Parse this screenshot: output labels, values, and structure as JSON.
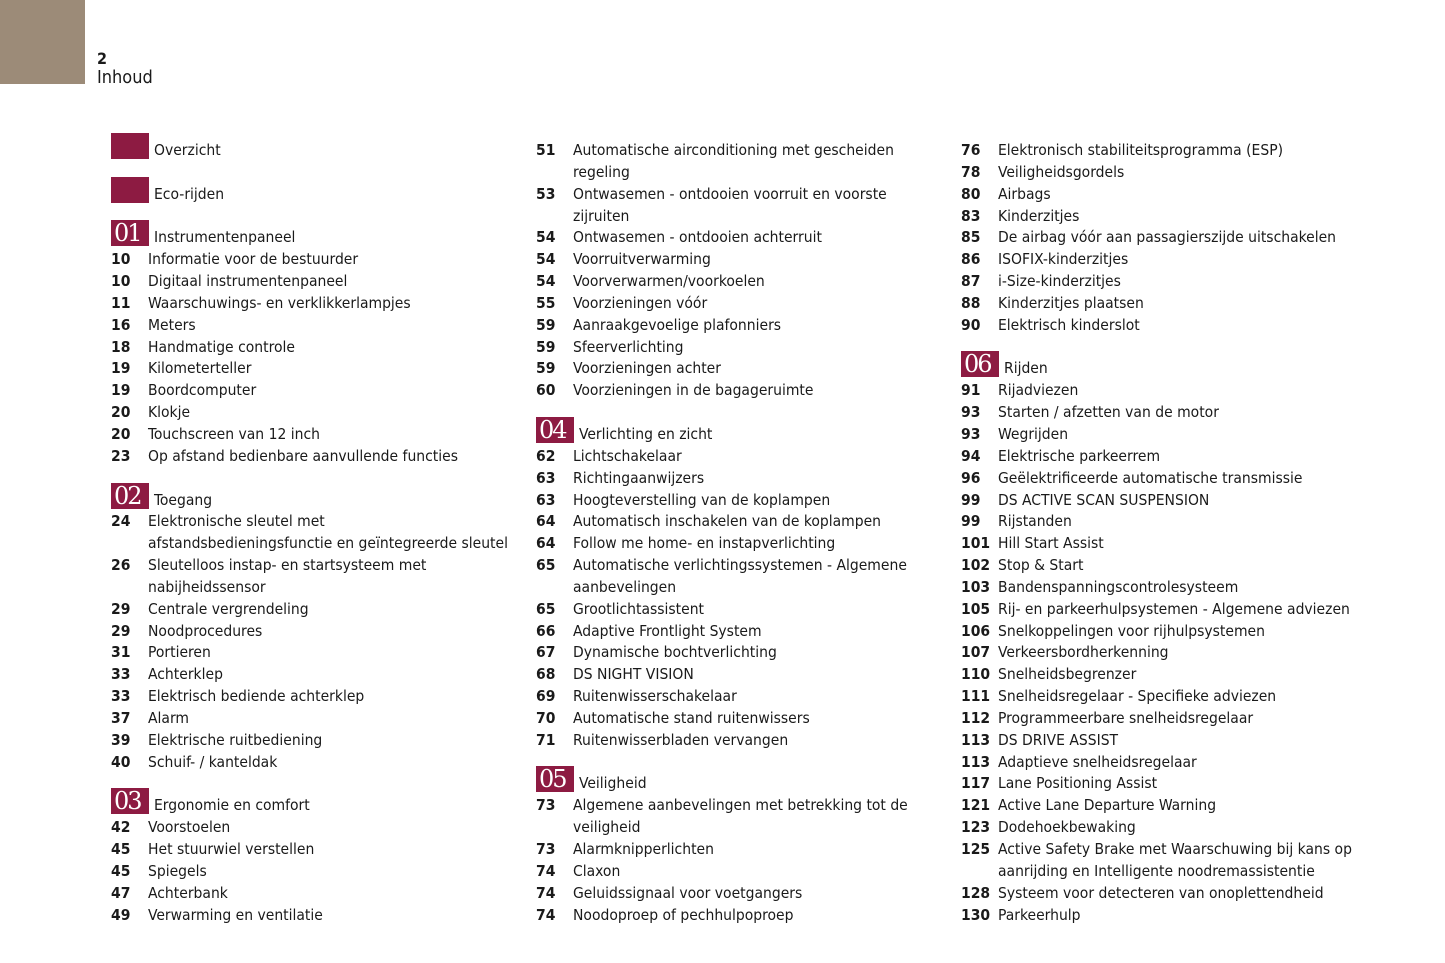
{
  "page": {
    "number": "2",
    "title": "Inhoud",
    "colors": {
      "accent": "#8d1b42",
      "tab": "#9c8b78"
    }
  },
  "columns": [
    [
      {
        "type": "header",
        "badge": "",
        "title": "Overzicht"
      },
      {
        "type": "blank"
      },
      {
        "type": "header",
        "badge": "",
        "title": "Eco-rijden"
      },
      {
        "type": "blank"
      },
      {
        "type": "header",
        "badge": "01",
        "title": "Instrumentenpaneel"
      },
      {
        "page": "10",
        "lines": [
          "Informatie voor de bestuurder"
        ]
      },
      {
        "page": "10",
        "lines": [
          "Digitaal instrumentenpaneel"
        ]
      },
      {
        "page": "11",
        "lines": [
          "Waarschuwings- en verklikkerlampjes"
        ]
      },
      {
        "page": "16",
        "lines": [
          "Meters"
        ]
      },
      {
        "page": "18",
        "lines": [
          "Handmatige controle"
        ]
      },
      {
        "page": "19",
        "lines": [
          "Kilometerteller"
        ]
      },
      {
        "page": "19",
        "lines": [
          "Boordcomputer"
        ]
      },
      {
        "page": "20",
        "lines": [
          "Klokje"
        ]
      },
      {
        "page": "20",
        "lines": [
          "Touchscreen van 12 inch"
        ]
      },
      {
        "page": "23",
        "lines": [
          "Op afstand bedienbare aanvullende functies"
        ]
      },
      {
        "type": "blank"
      },
      {
        "type": "header",
        "badge": "02",
        "title": "Toegang"
      },
      {
        "page": "24",
        "lines": [
          "Elektronische sleutel met",
          "afstandsbedieningsfunctie en geïntegreerde sleutel"
        ]
      },
      {
        "page": "26",
        "lines": [
          "Sleutelloos instap- en startsysteem met",
          "nabijheidssensor"
        ]
      },
      {
        "page": "29",
        "lines": [
          "Centrale vergrendeling"
        ]
      },
      {
        "page": "29",
        "lines": [
          "Noodprocedures"
        ]
      },
      {
        "page": "31",
        "lines": [
          "Portieren"
        ]
      },
      {
        "page": "33",
        "lines": [
          "Achterklep"
        ]
      },
      {
        "page": "33",
        "lines": [
          "Elektrisch bediende achterklep"
        ]
      },
      {
        "page": "37",
        "lines": [
          "Alarm"
        ]
      },
      {
        "page": "39",
        "lines": [
          "Elektrische ruitbediening"
        ]
      },
      {
        "page": "40",
        "lines": [
          "Schuif- / kanteldak"
        ]
      },
      {
        "type": "blank"
      },
      {
        "type": "header",
        "badge": "03",
        "title": "Ergonomie en comfort"
      },
      {
        "page": "42",
        "lines": [
          "Voorstoelen"
        ]
      },
      {
        "page": "45",
        "lines": [
          "Het stuurwiel verstellen"
        ]
      },
      {
        "page": "45",
        "lines": [
          "Spiegels"
        ]
      },
      {
        "page": "47",
        "lines": [
          "Achterbank"
        ]
      },
      {
        "page": "49",
        "lines": [
          "Verwarming en ventilatie"
        ]
      }
    ],
    [
      {
        "page": "51",
        "lines": [
          "Automatische airconditioning met gescheiden",
          "regeling"
        ]
      },
      {
        "page": "53",
        "lines": [
          "Ontwasemen - ontdooien voorruit en voorste",
          "zijruiten"
        ]
      },
      {
        "page": "54",
        "lines": [
          "Ontwasemen - ontdooien achterruit"
        ]
      },
      {
        "page": "54",
        "lines": [
          "Voorruitverwarming"
        ]
      },
      {
        "page": "54",
        "lines": [
          "Voorverwarmen/voorkoelen"
        ]
      },
      {
        "page": "55",
        "lines": [
          "Voorzieningen vóór"
        ]
      },
      {
        "page": "59",
        "lines": [
          "Aanraakgevoelige plafonniers"
        ]
      },
      {
        "page": "59",
        "lines": [
          "Sfeerverlichting"
        ]
      },
      {
        "page": "59",
        "lines": [
          "Voorzieningen achter"
        ]
      },
      {
        "page": "60",
        "lines": [
          "Voorzieningen in de bagageruimte"
        ]
      },
      {
        "type": "blank"
      },
      {
        "type": "header",
        "badge": "04",
        "title": "Verlichting en zicht"
      },
      {
        "page": "62",
        "lines": [
          "Lichtschakelaar"
        ]
      },
      {
        "page": "63",
        "lines": [
          "Richtingaanwijzers"
        ]
      },
      {
        "page": "63",
        "lines": [
          "Hoogteverstelling van de koplampen"
        ]
      },
      {
        "page": "64",
        "lines": [
          "Automatisch inschakelen van de koplampen"
        ]
      },
      {
        "page": "64",
        "lines": [
          "Follow me home- en instapverlichting"
        ]
      },
      {
        "page": "65",
        "lines": [
          "Automatische verlichtingssystemen - Algemene",
          "aanbevelingen"
        ]
      },
      {
        "page": "65",
        "lines": [
          "Grootlichtassistent"
        ]
      },
      {
        "page": "66",
        "lines": [
          "Adaptive Frontlight System"
        ]
      },
      {
        "page": "67",
        "lines": [
          "Dynamische bochtverlichting"
        ]
      },
      {
        "page": "68",
        "lines": [
          "DS NIGHT VISION"
        ]
      },
      {
        "page": "69",
        "lines": [
          "Ruitenwisserschakelaar"
        ]
      },
      {
        "page": "70",
        "lines": [
          "Automatische stand ruitenwissers"
        ]
      },
      {
        "page": "71",
        "lines": [
          "Ruitenwisserbladen vervangen"
        ]
      },
      {
        "type": "blank"
      },
      {
        "type": "header",
        "badge": "05",
        "title": "Veiligheid"
      },
      {
        "page": "73",
        "lines": [
          "Algemene aanbevelingen met betrekking tot de",
          "veiligheid"
        ]
      },
      {
        "page": "73",
        "lines": [
          "Alarmknipperlichten"
        ]
      },
      {
        "page": "74",
        "lines": [
          "Claxon"
        ]
      },
      {
        "page": "74",
        "lines": [
          "Geluidssignaal voor voetgangers"
        ]
      },
      {
        "page": "74",
        "lines": [
          "Noodoproep of pechhulpoproep"
        ]
      }
    ],
    [
      {
        "page": "76",
        "lines": [
          "Elektronisch stabiliteitsprogramma (ESP)"
        ]
      },
      {
        "page": "78",
        "lines": [
          "Veiligheidsgordels"
        ]
      },
      {
        "page": "80",
        "lines": [
          "Airbags"
        ]
      },
      {
        "page": "83",
        "lines": [
          "Kinderzitjes"
        ]
      },
      {
        "page": "85",
        "lines": [
          "De airbag vóór aan passagierszijde uitschakelen"
        ]
      },
      {
        "page": "86",
        "lines": [
          "ISOFIX-kinderzitjes"
        ]
      },
      {
        "page": "87",
        "lines": [
          "i-Size-kinderzitjes"
        ]
      },
      {
        "page": "88",
        "lines": [
          "Kinderzitjes plaatsen"
        ]
      },
      {
        "page": "90",
        "lines": [
          "Elektrisch kinderslot"
        ]
      },
      {
        "type": "blank"
      },
      {
        "type": "header",
        "badge": "06",
        "title": "Rijden"
      },
      {
        "page": "91",
        "lines": [
          "Rijadviezen"
        ]
      },
      {
        "page": "93",
        "lines": [
          "Starten / afzetten van de motor"
        ]
      },
      {
        "page": "93",
        "lines": [
          "Wegrijden"
        ]
      },
      {
        "page": "94",
        "lines": [
          "Elektrische parkeerrem"
        ]
      },
      {
        "page": "96",
        "lines": [
          "Geëlektrificeerde automatische transmissie"
        ]
      },
      {
        "page": "99",
        "lines": [
          "DS ACTIVE SCAN SUSPENSION"
        ]
      },
      {
        "page": "99",
        "lines": [
          "Rijstanden"
        ]
      },
      {
        "page": "101",
        "lines": [
          "Hill Start Assist"
        ]
      },
      {
        "page": "102",
        "lines": [
          "Stop & Start"
        ]
      },
      {
        "page": "103",
        "lines": [
          "Bandenspanningscontrolesysteem"
        ]
      },
      {
        "page": "105",
        "lines": [
          "Rij- en parkeerhulpsystemen - Algemene adviezen"
        ]
      },
      {
        "page": "106",
        "lines": [
          "Snelkoppelingen voor rijhulpsystemen"
        ]
      },
      {
        "page": "107",
        "lines": [
          "Verkeersbordherkenning"
        ]
      },
      {
        "page": "110",
        "lines": [
          "Snelheidsbegrenzer"
        ]
      },
      {
        "page": "111",
        "lines": [
          "Snelheidsregelaar - Specifieke adviezen"
        ]
      },
      {
        "page": "112",
        "lines": [
          "Programmeerbare snelheidsregelaar"
        ]
      },
      {
        "page": "113",
        "lines": [
          "DS DRIVE ASSIST"
        ]
      },
      {
        "page": "113",
        "lines": [
          "Adaptieve snelheidsregelaar"
        ]
      },
      {
        "page": "117",
        "lines": [
          "Lane Positioning Assist"
        ]
      },
      {
        "page": "121",
        "lines": [
          "Active Lane Departure Warning"
        ]
      },
      {
        "page": "123",
        "lines": [
          "Dodehoekbewaking"
        ]
      },
      {
        "page": "125",
        "lines": [
          "Active Safety Brake met Waarschuwing bij kans op",
          "aanrijding en Intelligente noodremassistentie"
        ]
      },
      {
        "page": "128",
        "lines": [
          "Systeem voor detecteren van onoplettendheid"
        ]
      },
      {
        "page": "130",
        "lines": [
          "Parkeerhulp"
        ]
      }
    ]
  ]
}
